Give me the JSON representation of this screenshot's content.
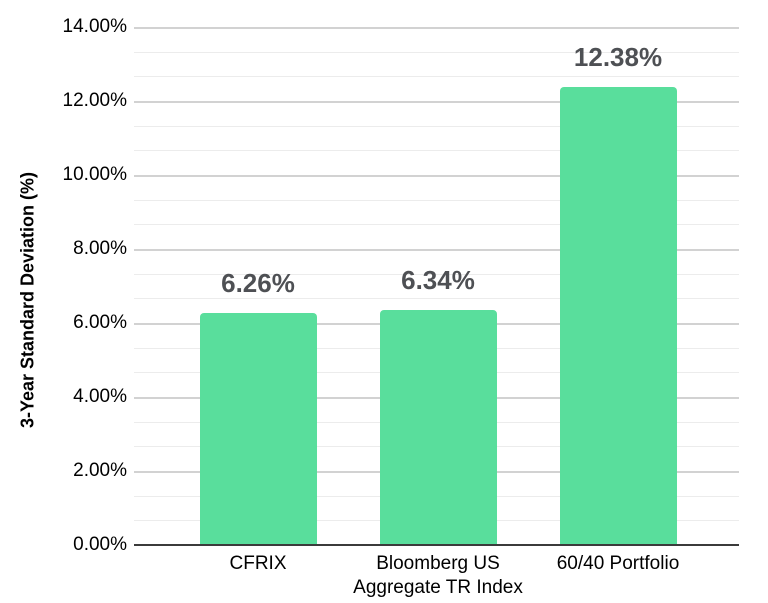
{
  "chart_data": {
    "type": "bar",
    "title": "",
    "xlabel": "",
    "ylabel": "3-Year Standard Deviation (%)",
    "categories": [
      [
        "CFRIX"
      ],
      [
        "Bloomberg US",
        "Aggregate TR Index"
      ],
      [
        "60/40 Portfolio"
      ]
    ],
    "values": [
      6.26,
      6.34,
      12.38
    ],
    "value_labels": [
      "6.26%",
      "6.34%",
      "12.38%"
    ],
    "y_axis": {
      "min": 0,
      "max": 14,
      "major_step": 2,
      "minor_step": 0.667,
      "tick_labels": [
        "0.00%",
        "2.00%",
        "4.00%",
        "6.00%",
        "8.00%",
        "10.00%",
        "12.00%",
        "14.00%"
      ]
    },
    "grid": true,
    "legend": "none",
    "colors": {
      "bar": "#59DE9C",
      "value_label": "#4E5054",
      "axis_text": "#000000",
      "major_grid": "#D2D2D2",
      "minor_grid": "#ECECEC",
      "axis_line": "#3B3B3B",
      "background": "#FFFFFF"
    }
  }
}
